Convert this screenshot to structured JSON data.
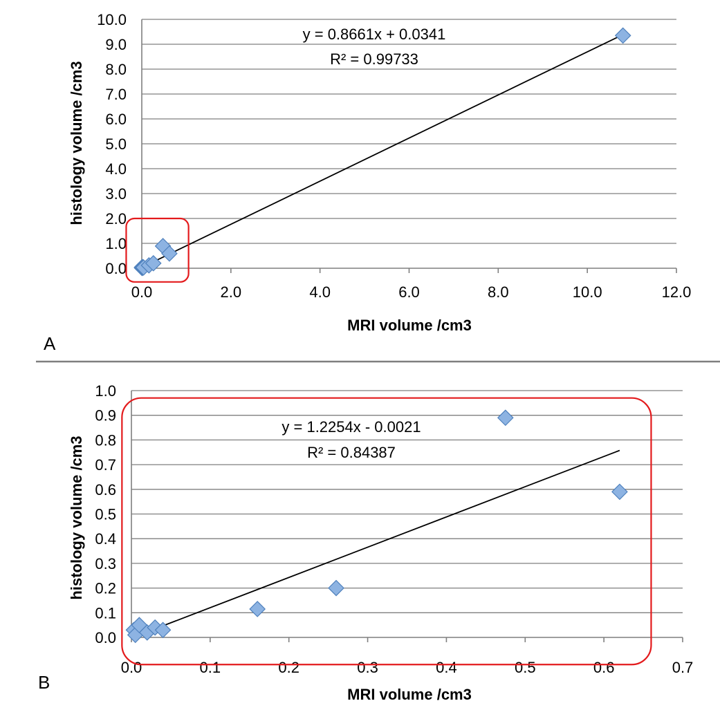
{
  "colors": {
    "marker_fill": "#8db3e2",
    "marker_stroke": "#4f81bd",
    "gridline": "#7f7f7f",
    "trendline": "#000000",
    "highlight_box": "#e31a1c",
    "panel_divider": "#7f7f7f"
  },
  "chart_data": [
    {
      "type": "scatter",
      "panel_label": "A",
      "xlabel": "MRI volume /cm3",
      "ylabel": "histology volume /cm3",
      "xlim": [
        0,
        12
      ],
      "ylim": [
        0,
        10
      ],
      "x_ticks": [
        "0.0",
        "2.0",
        "4.0",
        "6.0",
        "8.0",
        "10.0",
        "12.0"
      ],
      "y_ticks": [
        "0.0",
        "1.0",
        "2.0",
        "3.0",
        "4.0",
        "5.0",
        "6.0",
        "7.0",
        "8.0",
        "9.0",
        "10.0"
      ],
      "grid": true,
      "series": [
        {
          "name": "samples",
          "marker": "diamond",
          "points": [
            {
              "x": 0.003,
              "y": 0.03
            },
            {
              "x": 0.005,
              "y": 0.01
            },
            {
              "x": 0.01,
              "y": 0.05
            },
            {
              "x": 0.02,
              "y": 0.02
            },
            {
              "x": 0.03,
              "y": 0.04
            },
            {
              "x": 0.04,
              "y": 0.03
            },
            {
              "x": 0.16,
              "y": 0.115
            },
            {
              "x": 0.26,
              "y": 0.2
            },
            {
              "x": 0.475,
              "y": 0.89
            },
            {
              "x": 0.62,
              "y": 0.59
            },
            {
              "x": 10.8,
              "y": 9.35
            }
          ]
        }
      ],
      "trendline": {
        "slope": 0.8661,
        "intercept": 0.0341,
        "x_range": [
          0,
          10.8
        ]
      },
      "equation": "y = 0.8661x + 0.0341",
      "r_squared": "R² = 0.99733",
      "highlight_box": {
        "x_range": [
          -0.35,
          1.05
        ],
        "y_range": [
          -0.55,
          2.0
        ]
      }
    },
    {
      "type": "scatter",
      "panel_label": "B",
      "xlabel": "MRI volume /cm3",
      "ylabel": "histology volume /cm3",
      "xlim": [
        0,
        0.7
      ],
      "ylim": [
        0,
        1.0
      ],
      "x_ticks": [
        "0.0",
        "0.1",
        "0.2",
        "0.3",
        "0.4",
        "0.5",
        "0.6",
        "0.7"
      ],
      "y_ticks": [
        "0.0",
        "0.1",
        "0.2",
        "0.3",
        "0.4",
        "0.5",
        "0.6",
        "0.7",
        "0.8",
        "0.9",
        "1.0"
      ],
      "grid": true,
      "series": [
        {
          "name": "samples",
          "marker": "diamond",
          "points": [
            {
              "x": 0.003,
              "y": 0.03
            },
            {
              "x": 0.005,
              "y": 0.01
            },
            {
              "x": 0.01,
              "y": 0.05
            },
            {
              "x": 0.02,
              "y": 0.02
            },
            {
              "x": 0.03,
              "y": 0.04
            },
            {
              "x": 0.04,
              "y": 0.03
            },
            {
              "x": 0.16,
              "y": 0.115
            },
            {
              "x": 0.26,
              "y": 0.2
            },
            {
              "x": 0.475,
              "y": 0.89
            },
            {
              "x": 0.62,
              "y": 0.59
            }
          ]
        }
      ],
      "trendline": {
        "slope": 1.2254,
        "intercept": -0.0021,
        "x_range": [
          0.01,
          0.62
        ]
      },
      "equation": "y = 1.2254x - 0.0021",
      "r_squared": "R² = 0.84387",
      "highlight_box": {
        "x_range": [
          -0.012,
          0.66
        ],
        "y_range": [
          -0.11,
          0.97
        ]
      }
    }
  ]
}
